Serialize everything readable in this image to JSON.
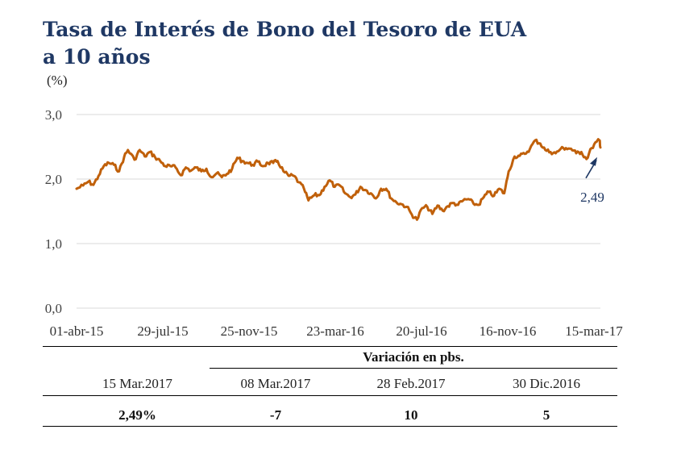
{
  "title_line1": "Tasa de Interés de Bono del Tesoro de EUA",
  "title_line2": "a 10 años",
  "unit_label": "(%)",
  "chart_data": {
    "type": "line",
    "title": "Tasa de Interés de Bono del Tesoro de EUA a 10 años",
    "ylabel": "(%)",
    "ylim": [
      0,
      3
    ],
    "y_ticks": [
      "0,0",
      "1,0",
      "2,0",
      "3,0"
    ],
    "x_tick_labels": [
      "01-abr-15",
      "29-jul-15",
      "25-nov-15",
      "23-mar-16",
      "20-jul-16",
      "16-nov-16",
      "15-mar-17"
    ],
    "x_range": [
      "2015-04-01",
      "2017-03-15"
    ],
    "grid": true,
    "series": [
      {
        "color": "#c0600a",
        "points": [
          [
            "2015-04-01",
            1.85
          ],
          [
            "2015-04-10",
            1.9
          ],
          [
            "2015-04-17",
            1.96
          ],
          [
            "2015-04-24",
            1.91
          ],
          [
            "2015-05-01",
            2.05
          ],
          [
            "2015-05-08",
            2.2
          ],
          [
            "2015-05-15",
            2.25
          ],
          [
            "2015-05-22",
            2.22
          ],
          [
            "2015-05-29",
            2.12
          ],
          [
            "2015-06-05",
            2.35
          ],
          [
            "2015-06-10",
            2.45
          ],
          [
            "2015-06-19",
            2.3
          ],
          [
            "2015-06-26",
            2.45
          ],
          [
            "2015-07-03",
            2.35
          ],
          [
            "2015-07-10",
            2.42
          ],
          [
            "2015-07-17",
            2.34
          ],
          [
            "2015-07-24",
            2.28
          ],
          [
            "2015-07-31",
            2.2
          ],
          [
            "2015-08-07",
            2.2
          ],
          [
            "2015-08-14",
            2.18
          ],
          [
            "2015-08-21",
            2.06
          ],
          [
            "2015-08-28",
            2.18
          ],
          [
            "2015-09-04",
            2.13
          ],
          [
            "2015-09-11",
            2.18
          ],
          [
            "2015-09-18",
            2.12
          ],
          [
            "2015-09-25",
            2.16
          ],
          [
            "2015-10-02",
            2.03
          ],
          [
            "2015-10-09",
            2.09
          ],
          [
            "2015-10-16",
            2.03
          ],
          [
            "2015-10-23",
            2.08
          ],
          [
            "2015-10-30",
            2.16
          ],
          [
            "2015-11-06",
            2.33
          ],
          [
            "2015-11-13",
            2.28
          ],
          [
            "2015-11-20",
            2.25
          ],
          [
            "2015-11-27",
            2.22
          ],
          [
            "2015-12-04",
            2.27
          ],
          [
            "2015-12-11",
            2.2
          ],
          [
            "2015-12-18",
            2.25
          ],
          [
            "2015-12-25",
            2.25
          ],
          [
            "2015-12-31",
            2.28
          ],
          [
            "2016-01-08",
            2.12
          ],
          [
            "2016-01-15",
            2.05
          ],
          [
            "2016-01-22",
            2.05
          ],
          [
            "2016-01-29",
            1.95
          ],
          [
            "2016-02-05",
            1.85
          ],
          [
            "2016-02-11",
            1.67
          ],
          [
            "2016-02-19",
            1.75
          ],
          [
            "2016-02-26",
            1.75
          ],
          [
            "2016-03-04",
            1.88
          ],
          [
            "2016-03-11",
            1.98
          ],
          [
            "2016-03-18",
            1.88
          ],
          [
            "2016-03-25",
            1.9
          ],
          [
            "2016-04-01",
            1.78
          ],
          [
            "2016-04-08",
            1.72
          ],
          [
            "2016-04-15",
            1.76
          ],
          [
            "2016-04-22",
            1.88
          ],
          [
            "2016-04-29",
            1.83
          ],
          [
            "2016-05-06",
            1.78
          ],
          [
            "2016-05-13",
            1.7
          ],
          [
            "2016-05-20",
            1.85
          ],
          [
            "2016-05-27",
            1.85
          ],
          [
            "2016-06-03",
            1.7
          ],
          [
            "2016-06-10",
            1.64
          ],
          [
            "2016-06-17",
            1.61
          ],
          [
            "2016-06-24",
            1.57
          ],
          [
            "2016-07-01",
            1.45
          ],
          [
            "2016-07-08",
            1.37
          ],
          [
            "2016-07-15",
            1.55
          ],
          [
            "2016-07-22",
            1.57
          ],
          [
            "2016-07-29",
            1.46
          ],
          [
            "2016-08-05",
            1.59
          ],
          [
            "2016-08-12",
            1.51
          ],
          [
            "2016-08-19",
            1.58
          ],
          [
            "2016-08-26",
            1.63
          ],
          [
            "2016-09-02",
            1.6
          ],
          [
            "2016-09-09",
            1.67
          ],
          [
            "2016-09-16",
            1.69
          ],
          [
            "2016-09-23",
            1.62
          ],
          [
            "2016-09-30",
            1.6
          ],
          [
            "2016-10-07",
            1.72
          ],
          [
            "2016-10-14",
            1.8
          ],
          [
            "2016-10-21",
            1.74
          ],
          [
            "2016-10-28",
            1.85
          ],
          [
            "2016-11-04",
            1.78
          ],
          [
            "2016-11-10",
            2.12
          ],
          [
            "2016-11-18",
            2.35
          ],
          [
            "2016-11-25",
            2.36
          ],
          [
            "2016-12-02",
            2.39
          ],
          [
            "2016-12-09",
            2.47
          ],
          [
            "2016-12-16",
            2.6
          ],
          [
            "2016-12-23",
            2.55
          ],
          [
            "2016-12-30",
            2.45
          ],
          [
            "2017-01-06",
            2.42
          ],
          [
            "2017-01-13",
            2.4
          ],
          [
            "2017-01-20",
            2.47
          ],
          [
            "2017-01-27",
            2.48
          ],
          [
            "2017-02-03",
            2.47
          ],
          [
            "2017-02-10",
            2.4
          ],
          [
            "2017-02-17",
            2.42
          ],
          [
            "2017-02-24",
            2.31
          ],
          [
            "2017-03-03",
            2.48
          ],
          [
            "2017-03-10",
            2.58
          ],
          [
            "2017-03-14",
            2.6
          ],
          [
            "2017-03-15",
            2.49
          ]
        ]
      }
    ],
    "annotations": [
      {
        "text": "2,49",
        "x": "2017-03-15",
        "y": 2.49
      }
    ]
  },
  "table": {
    "group_header": "Variación en pbs.",
    "headers": [
      "15 Mar.2017",
      "08 Mar.2017",
      "28 Feb.2017",
      "30 Dic.2016"
    ],
    "values": [
      "2,49%",
      "-7",
      "10",
      "5"
    ]
  }
}
